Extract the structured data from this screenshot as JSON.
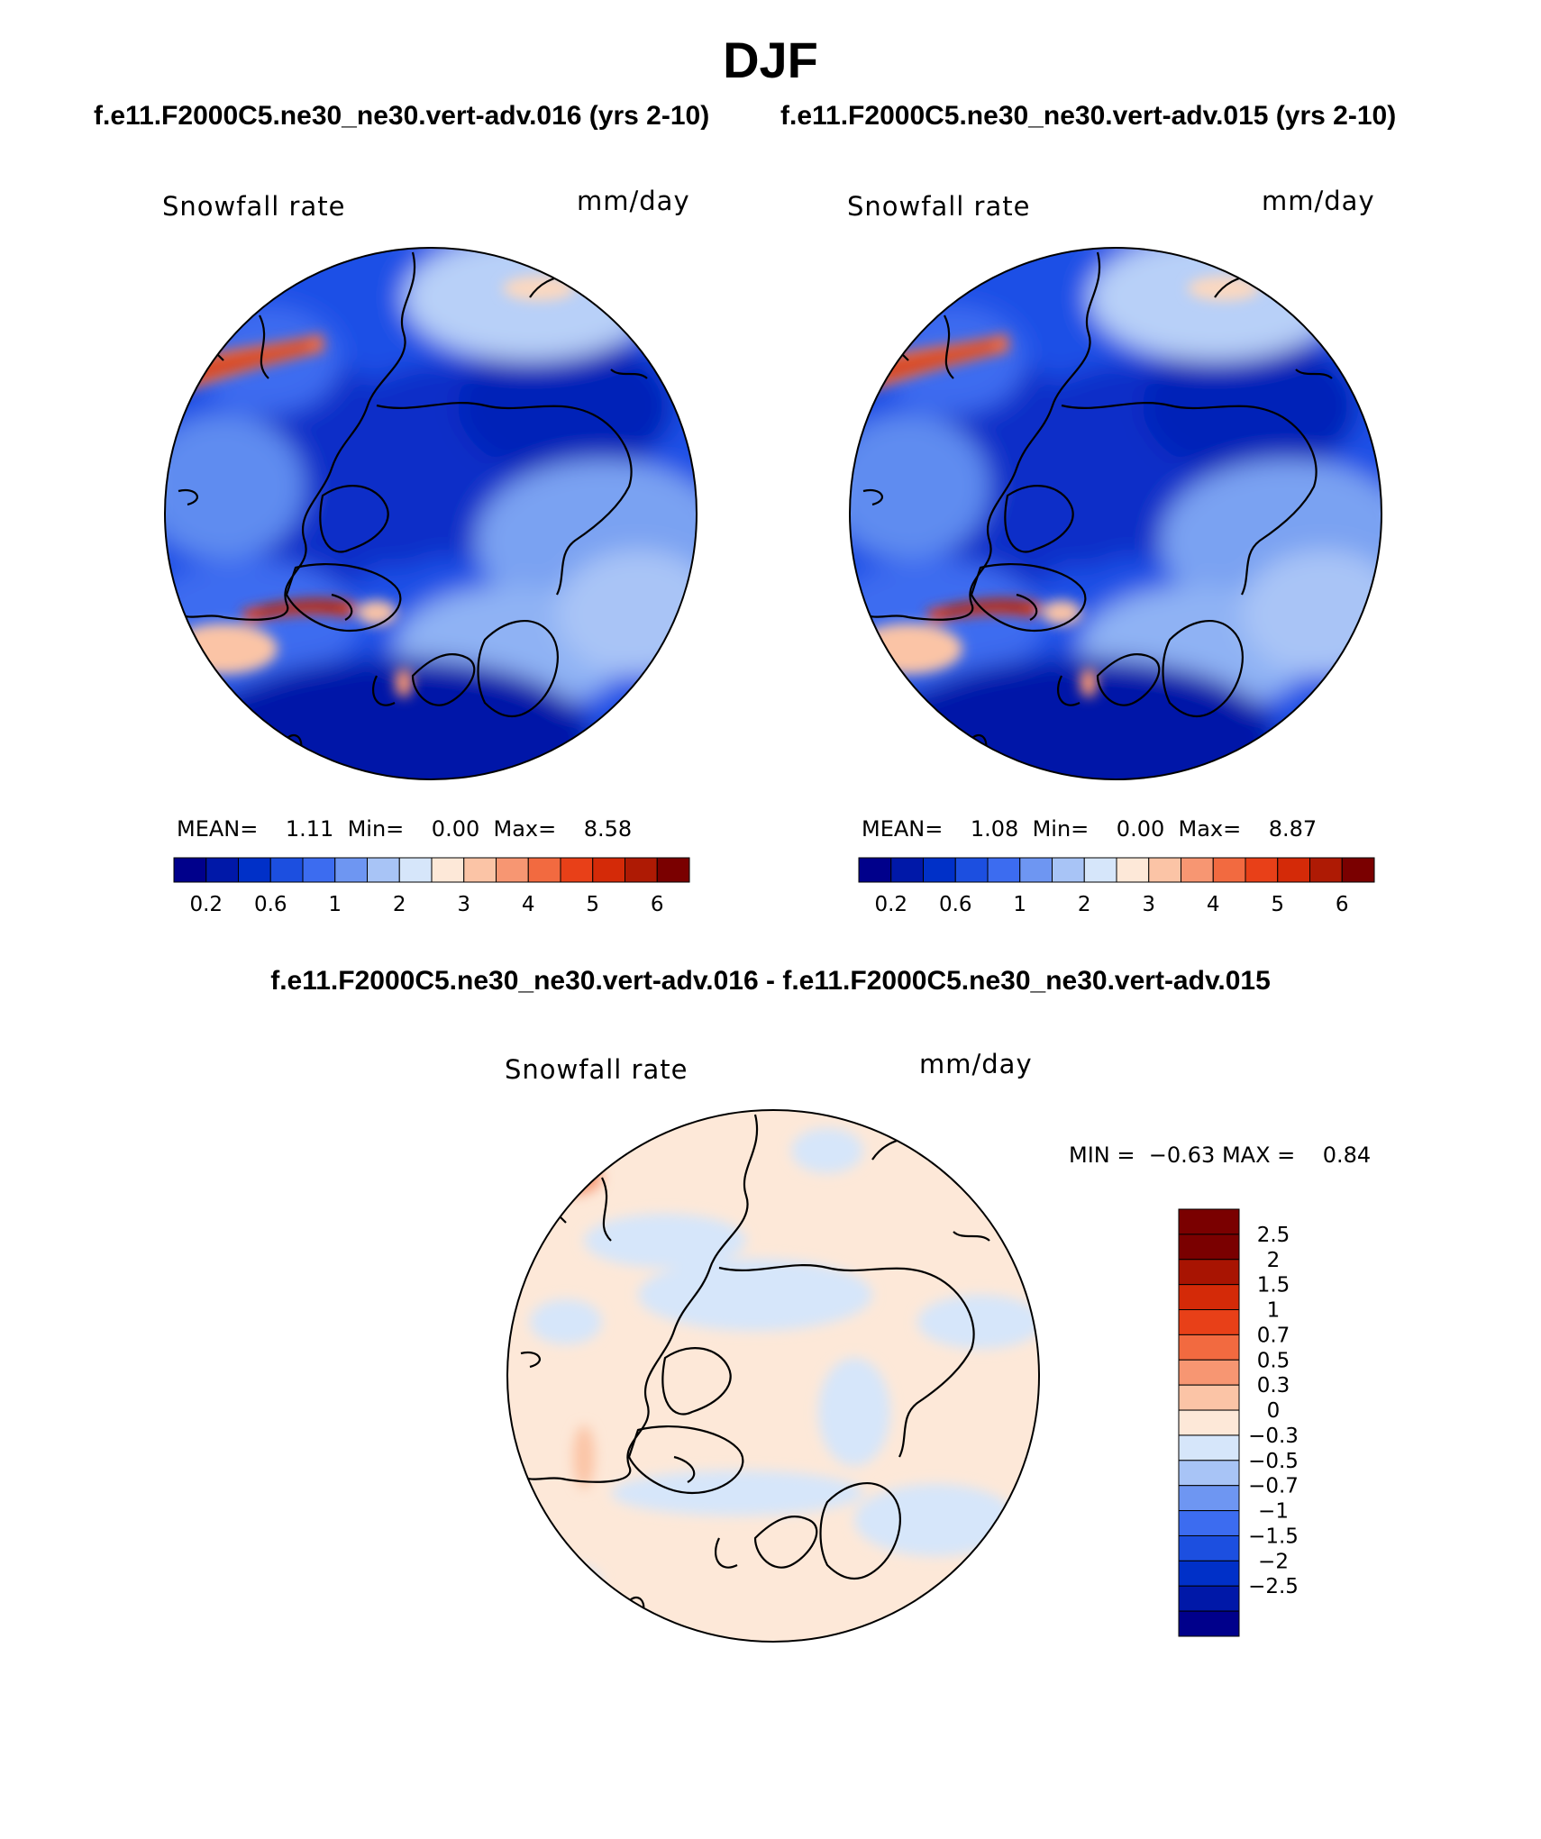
{
  "header": {
    "title": "DJF",
    "left_subtitle": "f.e11.F2000C5.ne30_ne30.vert-adv.016 (yrs 2-10)",
    "right_subtitle": "f.e11.F2000C5.ne30_ne30.vert-adv.015 (yrs 2-10)",
    "diff_title": "f.e11.F2000C5.ne30_ne30.vert-adv.016 - f.e11.F2000C5.ne30_ne30.vert-adv.015"
  },
  "panels": {
    "left": {
      "variable": "Snowfall rate",
      "units": "mm/day",
      "mean_label": "MEAN=",
      "mean": "1.11",
      "min_label": "Min=",
      "min": "0.00",
      "max_label": "Max=",
      "max": "8.58"
    },
    "right": {
      "variable": "Snowfall rate",
      "units": "mm/day",
      "mean_label": "MEAN=",
      "mean": "1.08",
      "min_label": "Min=",
      "min": "0.00",
      "max_label": "Max=",
      "max": "8.87"
    },
    "diff": {
      "variable": "Snowfall rate",
      "units": "mm/day",
      "min_label": "MIN =",
      "min": "−0.63",
      "max_label": "MAX =",
      "max": "0.84"
    }
  },
  "chart_data": [
    {
      "type": "heatmap",
      "projection": "north polar stereographic",
      "field": "Snowfall rate",
      "units": "mm/day",
      "stats": {
        "mean": 1.11,
        "min": 0.0,
        "max": 8.58
      },
      "colorbar_labels": [
        "0.2",
        "0.6",
        "1",
        "2",
        "3",
        "4",
        "5",
        "6"
      ],
      "colorbar_colors": [
        "#00008b",
        "#0018a8",
        "#0030c8",
        "#1c4fe0",
        "#3c6cf0",
        "#6e96f2",
        "#a8c4f6",
        "#d6e6fa",
        "#fde8d8",
        "#fbc4a6",
        "#f79672",
        "#f26a40",
        "#e84018",
        "#d42a08",
        "#ae1a04",
        "#7a0000"
      ]
    },
    {
      "type": "heatmap",
      "projection": "north polar stereographic",
      "field": "Snowfall rate",
      "units": "mm/day",
      "stats": {
        "mean": 1.08,
        "min": 0.0,
        "max": 8.87
      },
      "colorbar_labels": [
        "0.2",
        "0.6",
        "1",
        "2",
        "3",
        "4",
        "5",
        "6"
      ],
      "colorbar_colors": [
        "#00008b",
        "#0018a8",
        "#0030c8",
        "#1c4fe0",
        "#3c6cf0",
        "#6e96f2",
        "#a8c4f6",
        "#d6e6fa",
        "#fde8d8",
        "#fbc4a6",
        "#f79672",
        "#f26a40",
        "#e84018",
        "#d42a08",
        "#ae1a04",
        "#7a0000"
      ]
    },
    {
      "type": "heatmap",
      "projection": "north polar stereographic",
      "field": "Snowfall rate difference",
      "units": "mm/day",
      "stats": {
        "min": -0.63,
        "max": 0.84
      },
      "colorbar_labels": [
        "2.5",
        "2",
        "1.5",
        "1",
        "0.7",
        "0.5",
        "0.3",
        "0",
        "−0.3",
        "−0.5",
        "−0.7",
        "−1",
        "−1.5",
        "−2",
        "−2.5"
      ],
      "colorbar_colors": [
        "#7a0000",
        "#a81402",
        "#d42a08",
        "#e84018",
        "#f26a40",
        "#f79672",
        "#fbc4a6",
        "#fde8d8",
        "#d6e6fa",
        "#a8c4f6",
        "#6e96f2",
        "#3c6cf0",
        "#1c4fe0",
        "#0030c8",
        "#0018a8",
        "#00008b"
      ]
    }
  ]
}
